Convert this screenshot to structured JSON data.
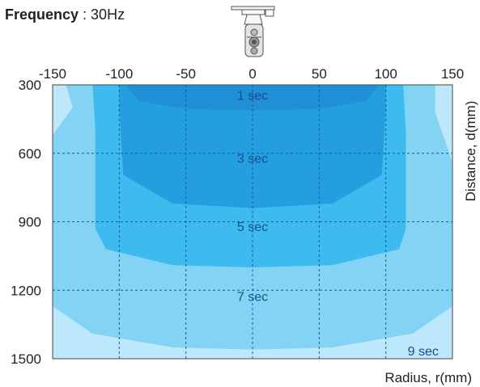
{
  "header": {
    "frequency_label": "Frequency",
    "frequency_sep": " : ",
    "frequency_value": "30Hz",
    "device_icon": "vibration-shaker-device-icon"
  },
  "chart_data": {
    "type": "heatmap",
    "title": "",
    "xlabel": "Radius, r(mm)",
    "ylabel": "Distance, d(mm)",
    "x_ticks": [
      -150,
      -100,
      -50,
      0,
      50,
      100,
      150
    ],
    "y_ticks": [
      300,
      600,
      900,
      1200,
      1500
    ],
    "xlim": [
      -150,
      150
    ],
    "ylim": [
      300,
      1500
    ],
    "y_direction": "downward",
    "grid": true,
    "grid_x": [
      -100,
      -50,
      0,
      50,
      100
    ],
    "grid_y": [
      600,
      900,
      1200
    ],
    "zones": [
      {
        "label": "1 sec",
        "color": "#1f8fd6",
        "boundary": [
          [
            -95,
            300
          ],
          [
            -85,
            370
          ],
          [
            -50,
            405
          ],
          [
            0,
            412
          ],
          [
            50,
            405
          ],
          [
            85,
            370
          ],
          [
            95,
            300
          ]
        ]
      },
      {
        "label": "3 sec",
        "color": "#239fe0",
        "boundary": [
          [
            -100,
            300
          ],
          [
            -100,
            400
          ],
          [
            -97,
            695
          ],
          [
            -60,
            820
          ],
          [
            0,
            840
          ],
          [
            60,
            820
          ],
          [
            97,
            695
          ],
          [
            100,
            400
          ],
          [
            100,
            300
          ]
        ]
      },
      {
        "label": "5 sec",
        "color": "#3dbbef",
        "boundary": [
          [
            -120,
            300
          ],
          [
            -118,
            500
          ],
          [
            -118,
            930
          ],
          [
            -110,
            1020
          ],
          [
            -60,
            1090
          ],
          [
            0,
            1100
          ],
          [
            60,
            1090
          ],
          [
            110,
            1020
          ],
          [
            115,
            930
          ],
          [
            115,
            500
          ],
          [
            113,
            300
          ]
        ]
      },
      {
        "label": "7 sec",
        "color": "#83d3f5",
        "boundary": [
          [
            -140,
            300
          ],
          [
            -135,
            400
          ],
          [
            -150,
            520
          ],
          [
            -150,
            1270
          ],
          [
            -120,
            1390
          ],
          [
            -60,
            1450
          ],
          [
            0,
            1460
          ],
          [
            60,
            1450
          ],
          [
            120,
            1390
          ],
          [
            150,
            1270
          ],
          [
            150,
            640
          ],
          [
            137,
            420
          ],
          [
            137,
            300
          ]
        ]
      },
      {
        "label": "9 sec",
        "color": "#bde7fa",
        "boundary": "remainder"
      }
    ],
    "zone_label_positions": [
      {
        "label": "1 sec",
        "x": 0,
        "y": 345
      },
      {
        "label": "3 sec",
        "x": 0,
        "y": 620
      },
      {
        "label": "5 sec",
        "x": 0,
        "y": 920
      },
      {
        "label": "7 sec",
        "x": 0,
        "y": 1225
      },
      {
        "label": "9 sec",
        "x": 128,
        "y": 1465
      }
    ],
    "label_color": "#1a4f8a"
  }
}
